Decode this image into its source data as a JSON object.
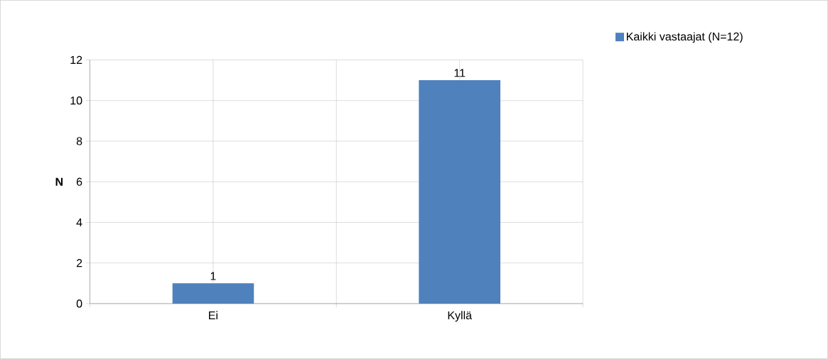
{
  "chart_data": {
    "type": "bar",
    "ylabel": "N",
    "categories": [
      "Ei",
      "Kyllä"
    ],
    "series": [
      {
        "name": "Kaikki vastaajat (N=12)",
        "color": "#4f81bd",
        "values": [
          1,
          11
        ]
      }
    ],
    "ylim": [
      0,
      12
    ],
    "yticks": [
      0,
      2,
      4,
      6,
      8,
      10,
      12
    ],
    "grid": true,
    "legend": "top right",
    "data_labels": true
  }
}
